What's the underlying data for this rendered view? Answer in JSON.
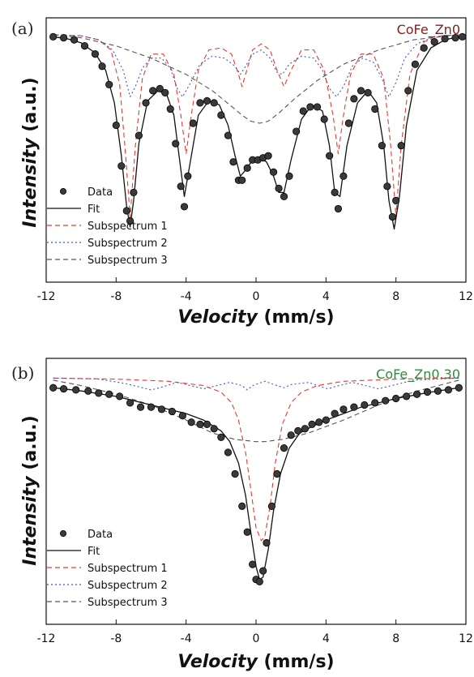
{
  "chart_data": [
    {
      "type": "line",
      "panel_label": "(a)",
      "sample_label": "CoFe_Zn0",
      "sample_color": "#8b1a1a",
      "xlabel": "Velocity (mm/s)",
      "xlabel_italic_part": "Velocity",
      "xlabel_unit_part": " (mm/s)",
      "ylabel": "Intensity (a.u.)",
      "ylabel_italic_part": "Intensity",
      "ylabel_unit_part": " (a.u.)",
      "xlim": [
        -12,
        12
      ],
      "ylim": [
        0,
        1
      ],
      "xticks": [
        "-12",
        "-8",
        "-4",
        "0",
        "4",
        "8",
        "12"
      ],
      "legend": {
        "placement": "bottom-left",
        "entries": [
          "Data",
          "Fit",
          "Subspectrum 1",
          "Subspectrum 2",
          "Subspectrum 3"
        ]
      },
      "series": [
        {
          "name": "Data",
          "style": "points",
          "color": "#111111",
          "x": [
            -11.6,
            -11.0,
            -10.4,
            -9.8,
            -9.2,
            -8.8,
            -8.4,
            -8.0,
            -7.7,
            -7.4,
            -7.2,
            -7.0,
            -6.7,
            -6.3,
            -5.9,
            -5.5,
            -5.2,
            -4.9,
            -4.6,
            -4.3,
            -4.1,
            -3.9,
            -3.6,
            -3.2,
            -2.8,
            -2.4,
            -2.0,
            -1.6,
            -1.3,
            -1.0,
            -0.8,
            -0.5,
            -0.2,
            0.1,
            0.4,
            0.7,
            1.0,
            1.3,
            1.6,
            1.9,
            2.3,
            2.7,
            3.1,
            3.5,
            3.9,
            4.2,
            4.5,
            4.7,
            5.0,
            5.3,
            5.6,
            6.0,
            6.4,
            6.8,
            7.2,
            7.5,
            7.8,
            8.0,
            8.3,
            8.7,
            9.1,
            9.6,
            10.2,
            10.8,
            11.4,
            11.8
          ],
          "y": [
            0.985,
            0.98,
            0.97,
            0.94,
            0.9,
            0.84,
            0.75,
            0.55,
            0.35,
            0.13,
            0.08,
            0.22,
            0.5,
            0.66,
            0.72,
            0.73,
            0.71,
            0.63,
            0.46,
            0.25,
            0.15,
            0.3,
            0.56,
            0.66,
            0.67,
            0.66,
            0.6,
            0.5,
            0.37,
            0.28,
            0.28,
            0.34,
            0.38,
            0.38,
            0.39,
            0.4,
            0.32,
            0.24,
            0.2,
            0.3,
            0.52,
            0.62,
            0.64,
            0.64,
            0.58,
            0.4,
            0.22,
            0.14,
            0.3,
            0.56,
            0.68,
            0.72,
            0.71,
            0.63,
            0.45,
            0.25,
            0.1,
            0.18,
            0.45,
            0.72,
            0.85,
            0.93,
            0.96,
            0.975,
            0.98,
            0.985
          ]
        },
        {
          "name": "Fit",
          "style": "solid",
          "color": "#111111",
          "x": [
            -11.6,
            -10.8,
            -10.0,
            -9.2,
            -8.6,
            -8.1,
            -7.7,
            -7.4,
            -7.2,
            -7.0,
            -6.7,
            -6.2,
            -5.6,
            -5.1,
            -4.7,
            -4.4,
            -4.1,
            -3.8,
            -3.3,
            -2.7,
            -2.1,
            -1.6,
            -1.2,
            -0.9,
            -0.6,
            -0.2,
            0.2,
            0.6,
            1.0,
            1.3,
            1.6,
            2.0,
            2.6,
            3.2,
            3.8,
            4.2,
            4.5,
            4.8,
            5.2,
            5.8,
            6.4,
            6.9,
            7.3,
            7.6,
            7.9,
            8.2,
            8.6,
            9.2,
            10.0,
            10.8,
            11.6
          ],
          "y": [
            0.985,
            0.975,
            0.955,
            0.905,
            0.82,
            0.66,
            0.4,
            0.15,
            0.05,
            0.18,
            0.46,
            0.67,
            0.72,
            0.7,
            0.6,
            0.4,
            0.2,
            0.35,
            0.6,
            0.67,
            0.65,
            0.55,
            0.4,
            0.3,
            0.33,
            0.38,
            0.39,
            0.37,
            0.3,
            0.22,
            0.22,
            0.38,
            0.58,
            0.65,
            0.62,
            0.45,
            0.22,
            0.2,
            0.45,
            0.66,
            0.72,
            0.66,
            0.45,
            0.18,
            0.04,
            0.2,
            0.55,
            0.82,
            0.93,
            0.97,
            0.985
          ]
        },
        {
          "name": "Subspectrum 1",
          "style": "dashed",
          "color": "#e8392f",
          "x": [
            -11.6,
            -10.0,
            -9.0,
            -8.3,
            -7.8,
            -7.5,
            -7.2,
            -6.9,
            -6.5,
            -6.0,
            -5.3,
            -4.7,
            -4.3,
            -4.0,
            -3.7,
            -3.3,
            -2.7,
            -2.0,
            -1.4,
            -1.0,
            -0.8,
            -0.6,
            -0.2,
            0.3,
            0.8,
            1.2,
            1.6,
            2.0,
            2.6,
            3.3,
            3.9,
            4.4,
            4.7,
            5.0,
            5.4,
            6.0,
            6.7,
            7.3,
            7.7,
            8.0,
            8.3,
            8.8,
            9.6,
            10.6,
            11.6
          ],
          "y": [
            0.995,
            0.99,
            0.97,
            0.92,
            0.75,
            0.45,
            0.1,
            0.45,
            0.78,
            0.9,
            0.9,
            0.8,
            0.6,
            0.41,
            0.6,
            0.82,
            0.92,
            0.93,
            0.9,
            0.8,
            0.74,
            0.8,
            0.92,
            0.95,
            0.92,
            0.82,
            0.74,
            0.82,
            0.92,
            0.92,
            0.82,
            0.6,
            0.41,
            0.6,
            0.8,
            0.9,
            0.9,
            0.78,
            0.45,
            0.1,
            0.45,
            0.8,
            0.96,
            0.99,
            0.995
          ]
        },
        {
          "name": "Subspectrum 2",
          "style": "dotted",
          "color": "#3b55c8",
          "x": [
            -11.6,
            -10.0,
            -9.0,
            -8.2,
            -7.6,
            -7.2,
            -6.9,
            -6.5,
            -6.0,
            -5.4,
            -4.9,
            -4.5,
            -4.2,
            -3.8,
            -3.2,
            -2.5,
            -1.8,
            -1.2,
            -0.9,
            -0.6,
            -0.2,
            0.3,
            0.8,
            1.2,
            1.5,
            1.9,
            2.6,
            3.3,
            3.8,
            4.2,
            4.6,
            5.0,
            5.5,
            6.1,
            6.7,
            7.2,
            7.6,
            8.0,
            8.5,
            9.2,
            10.2,
            11.6
          ],
          "y": [
            0.995,
            0.99,
            0.97,
            0.92,
            0.82,
            0.69,
            0.74,
            0.83,
            0.88,
            0.88,
            0.83,
            0.73,
            0.69,
            0.75,
            0.85,
            0.89,
            0.88,
            0.84,
            0.8,
            0.84,
            0.9,
            0.92,
            0.88,
            0.81,
            0.8,
            0.85,
            0.89,
            0.88,
            0.82,
            0.73,
            0.69,
            0.74,
            0.84,
            0.88,
            0.86,
            0.78,
            0.69,
            0.76,
            0.88,
            0.95,
            0.985,
            0.995
          ]
        },
        {
          "name": "Subspectrum 3",
          "style": "dashed",
          "color": "#555555",
          "x": [
            -11.6,
            -10.0,
            -8.0,
            -6.0,
            -4.0,
            -2.5,
            -1.5,
            -0.8,
            -0.3,
            0.2,
            0.7,
            1.3,
            2.2,
            3.5,
            5.0,
            7.0,
            9.0,
            11.6
          ],
          "y": [
            0.995,
            0.98,
            0.94,
            0.88,
            0.8,
            0.72,
            0.65,
            0.6,
            0.57,
            0.56,
            0.57,
            0.61,
            0.68,
            0.77,
            0.85,
            0.92,
            0.97,
            0.995
          ]
        }
      ]
    },
    {
      "type": "line",
      "panel_label": "(b)",
      "sample_label": "CoFe_Zn0.30",
      "sample_color": "#2e8b3e",
      "xlabel": "Velocity (mm/s)",
      "xlabel_italic_part": "Velocity",
      "xlabel_unit_part": " (mm/s)",
      "ylabel": "Intensity (a.u.)",
      "ylabel_italic_part": "Intensity",
      "ylabel_unit_part": " (a.u.)",
      "xlim": [
        -12,
        12
      ],
      "ylim": [
        0,
        1
      ],
      "xticks": [
        "-12",
        "-8",
        "-4",
        "0",
        "4",
        "8",
        "12"
      ],
      "legend": {
        "placement": "bottom-left",
        "entries": [
          "Data",
          "Fit",
          "Subspectrum 1",
          "Subspectrum 2",
          "Subspectrum 3"
        ]
      },
      "series": [
        {
          "name": "Data",
          "style": "points",
          "color": "#111111",
          "x": [
            -11.6,
            -11.0,
            -10.3,
            -9.6,
            -9.0,
            -8.4,
            -7.8,
            -7.2,
            -6.6,
            -6.0,
            -5.4,
            -4.8,
            -4.2,
            -3.7,
            -3.2,
            -2.8,
            -2.4,
            -2.0,
            -1.6,
            -1.2,
            -0.8,
            -0.5,
            -0.2,
            0.0,
            0.2,
            0.4,
            0.6,
            0.9,
            1.2,
            1.6,
            2.0,
            2.4,
            2.8,
            3.2,
            3.6,
            4.0,
            4.5,
            5.0,
            5.6,
            6.2,
            6.8,
            7.4,
            8.0,
            8.6,
            9.2,
            9.8,
            10.4,
            11.0,
            11.6
          ],
          "y": [
            0.95,
            0.945,
            0.94,
            0.935,
            0.925,
            0.92,
            0.91,
            0.88,
            0.86,
            0.86,
            0.85,
            0.84,
            0.82,
            0.79,
            0.78,
            0.78,
            0.76,
            0.72,
            0.65,
            0.55,
            0.4,
            0.28,
            0.13,
            0.06,
            0.05,
            0.1,
            0.23,
            0.4,
            0.55,
            0.67,
            0.73,
            0.75,
            0.76,
            0.78,
            0.79,
            0.8,
            0.83,
            0.85,
            0.86,
            0.87,
            0.88,
            0.89,
            0.9,
            0.91,
            0.92,
            0.93,
            0.935,
            0.94,
            0.95
          ]
        },
        {
          "name": "Fit",
          "style": "solid",
          "color": "#111111",
          "x": [
            -11.6,
            -10.0,
            -8.0,
            -6.0,
            -4.0,
            -3.0,
            -2.0,
            -1.5,
            -1.0,
            -0.6,
            -0.3,
            0.0,
            0.2,
            0.4,
            0.7,
            1.0,
            1.4,
            1.9,
            2.5,
            3.2,
            4.0,
            6.0,
            8.0,
            10.0,
            11.6
          ],
          "y": [
            0.95,
            0.935,
            0.91,
            0.87,
            0.83,
            0.8,
            0.75,
            0.7,
            0.6,
            0.45,
            0.28,
            0.12,
            0.06,
            0.07,
            0.2,
            0.38,
            0.55,
            0.67,
            0.74,
            0.77,
            0.8,
            0.86,
            0.9,
            0.93,
            0.95
          ]
        },
        {
          "name": "Subspectrum 1",
          "style": "dashed",
          "color": "#e8392f",
          "x": [
            -11.6,
            -8.0,
            -5.0,
            -3.0,
            -2.0,
            -1.4,
            -1.0,
            -0.6,
            -0.3,
            0.0,
            0.3,
            0.5,
            0.8,
            1.1,
            1.5,
            2.0,
            2.6,
            3.5,
            5.0,
            8.0,
            11.6
          ],
          "y": [
            0.995,
            0.99,
            0.98,
            0.96,
            0.93,
            0.88,
            0.8,
            0.65,
            0.48,
            0.3,
            0.24,
            0.26,
            0.4,
            0.6,
            0.78,
            0.88,
            0.93,
            0.96,
            0.98,
            0.99,
            0.995
          ]
        },
        {
          "name": "Subspectrum 2",
          "style": "dotted",
          "color": "#3b55c8",
          "x": [
            -11.6,
            -9.0,
            -7.5,
            -6.5,
            -6.0,
            -5.5,
            -4.5,
            -3.5,
            -3.0,
            -2.5,
            -1.5,
            -0.8,
            -0.5,
            -0.2,
            0.5,
            1.2,
            1.6,
            2.0,
            3.0,
            3.7,
            4.1,
            4.5,
            5.5,
            6.5,
            7.0,
            7.5,
            9.0,
            11.6
          ],
          "y": [
            0.995,
            0.99,
            0.97,
            0.95,
            0.94,
            0.95,
            0.975,
            0.955,
            0.945,
            0.955,
            0.975,
            0.96,
            0.94,
            0.96,
            0.98,
            0.96,
            0.95,
            0.965,
            0.975,
            0.955,
            0.945,
            0.955,
            0.975,
            0.955,
            0.945,
            0.955,
            0.985,
            0.995
          ]
        },
        {
          "name": "Subspectrum 3",
          "style": "dashed",
          "color": "#555555",
          "x": [
            -11.6,
            -10.0,
            -8.0,
            -6.0,
            -4.0,
            -2.5,
            -1.2,
            0.0,
            0.5,
            1.5,
            3.0,
            5.0,
            7.0,
            9.0,
            11.6
          ],
          "y": [
            0.985,
            0.96,
            0.92,
            0.87,
            0.8,
            0.74,
            0.71,
            0.7,
            0.7,
            0.71,
            0.74,
            0.8,
            0.87,
            0.93,
            0.985
          ]
        }
      ]
    }
  ]
}
